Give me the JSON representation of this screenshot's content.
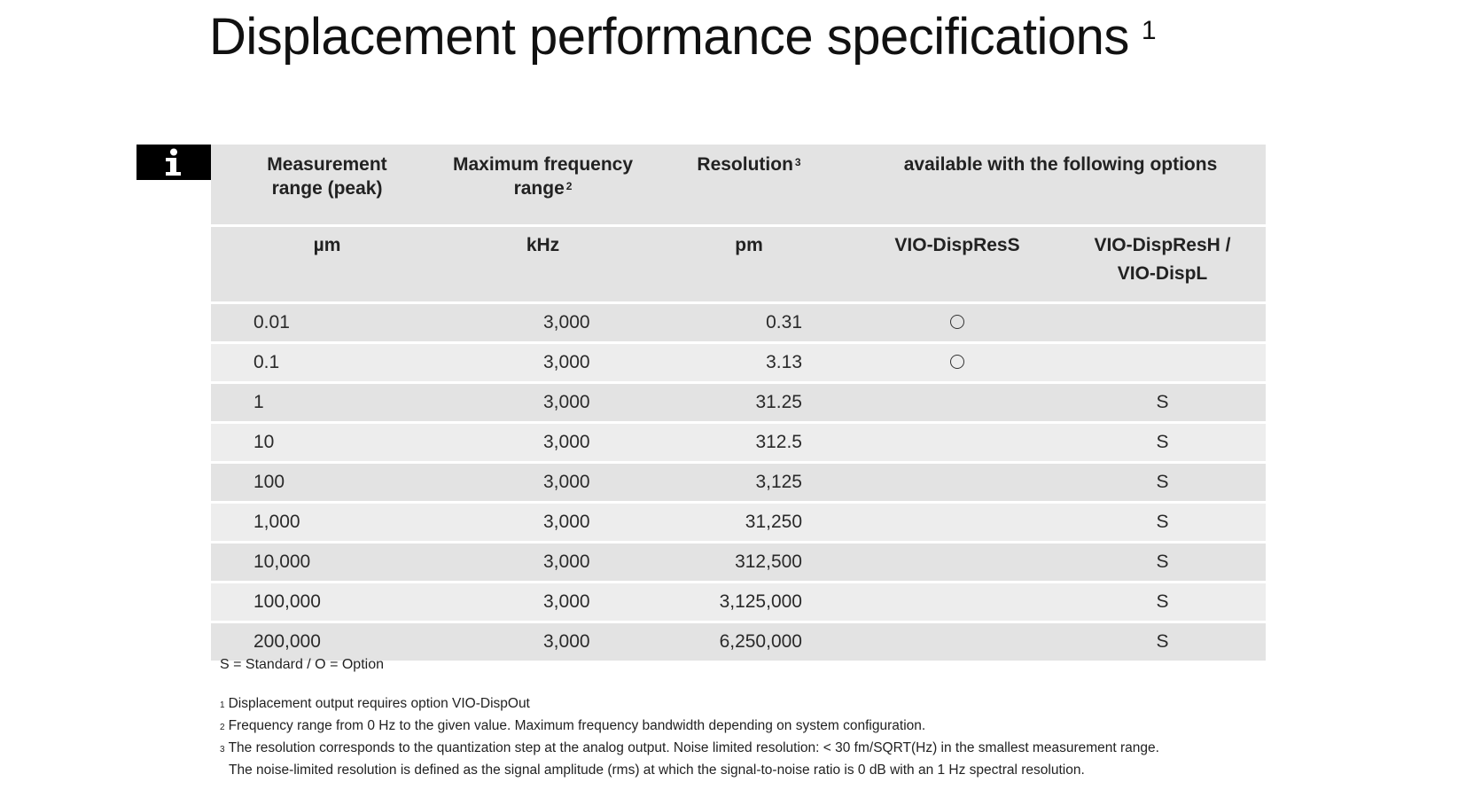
{
  "title": {
    "text": "Displacement performance specifications",
    "sup": "1"
  },
  "info_icon": "info-icon",
  "table": {
    "headers": {
      "range": "Measurement range (peak)",
      "freq": "Maximum frequency range",
      "freq_sup": "2",
      "res": "Resolution",
      "res_sup": "3",
      "avail": "available with the following options"
    },
    "units": {
      "range": "µm",
      "freq": "kHz",
      "res": "pm",
      "opt1": "VIO-DispResS",
      "opt2": "VIO-DispResH / VIO-DispL"
    },
    "rows": [
      {
        "range": "0.01",
        "freq": "3,000",
        "res": "0.31",
        "opt1": "O",
        "opt2": ""
      },
      {
        "range": "0.1",
        "freq": "3,000",
        "res": "3.13",
        "opt1": "O",
        "opt2": ""
      },
      {
        "range": "1",
        "freq": "3,000",
        "res": "31.25",
        "opt1": "",
        "opt2": "S"
      },
      {
        "range": "10",
        "freq": "3,000",
        "res": "312.5",
        "opt1": "",
        "opt2": "S"
      },
      {
        "range": "100",
        "freq": "3,000",
        "res": "3,125",
        "opt1": "",
        "opt2": "S"
      },
      {
        "range": "1,000",
        "freq": "3,000",
        "res": "31,250",
        "opt1": "",
        "opt2": "S"
      },
      {
        "range": "10,000",
        "freq": "3,000",
        "res": "312,500",
        "opt1": "",
        "opt2": "S"
      },
      {
        "range": "100,000",
        "freq": "3,000",
        "res": "3,125,000",
        "opt1": "",
        "opt2": "S"
      },
      {
        "range": "200,000",
        "freq": "3,000",
        "res": "6,250,000",
        "opt1": "",
        "opt2": "S"
      }
    ]
  },
  "legend": "S = Standard / O = Option",
  "footnotes": [
    {
      "num": "1",
      "text": "Displacement output requires option VIO-DispOut"
    },
    {
      "num": "2",
      "text": "Frequency range from 0 Hz to the given value. Maximum frequency bandwidth depending on system configuration."
    },
    {
      "num": "3",
      "text": "The resolution corresponds to the quantization step at the analog output. Noise limited resolution: < 30 fm/SQRT(Hz) in the smallest measurement range."
    }
  ],
  "footnote_continuation": "The noise-limited resolution is defined as the signal amplitude (rms) at which the signal-to-noise ratio is 0 dB with an 1 Hz spectral resolution."
}
